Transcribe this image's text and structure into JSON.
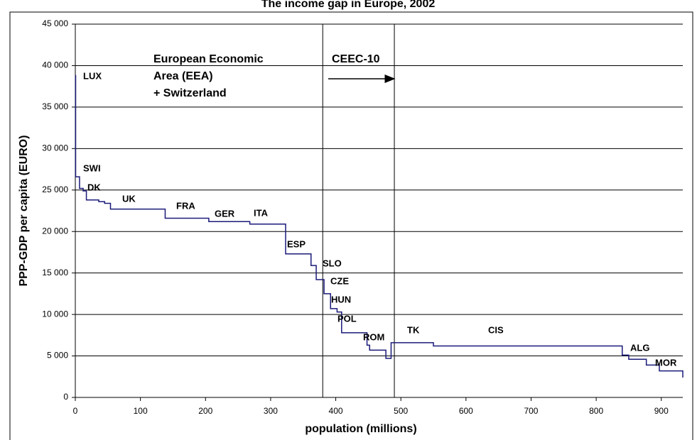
{
  "chart_data": {
    "type": "step-line",
    "title": "The income gap in Europe, 2002",
    "x_label": "population (millions)",
    "y_label": "PPP-GDP per capita (EURO)",
    "xlim": [
      0,
      933
    ],
    "xticks": [
      0,
      100,
      200,
      300,
      400,
      500,
      600,
      700,
      800,
      900
    ],
    "ylim": [
      0,
      45000
    ],
    "yticks": [
      0,
      {
        "value": 5000,
        "label": "5 000"
      },
      {
        "value": 10000,
        "label": "10 000"
      },
      {
        "value": 15000,
        "label": "15 000"
      },
      {
        "value": 20000,
        "label": "20 000"
      },
      {
        "value": 25000,
        "label": "25 000"
      },
      {
        "value": 30000,
        "label": "30 000"
      },
      {
        "value": 35000,
        "label": "35 000"
      },
      {
        "value": 40000,
        "label": "40 000"
      },
      {
        "value": 45000,
        "label": "45 000"
      }
    ],
    "grid": true,
    "color": "#1a1a7a",
    "x": [
      0,
      0.5,
      6.5,
      12,
      17,
      36,
      45,
      54,
      138,
      205,
      268,
      323,
      362,
      370,
      382,
      392,
      402,
      409,
      448,
      452,
      477,
      485,
      550,
      840,
      850,
      877,
      897,
      933
    ],
    "values": [
      38800,
      26600,
      25200,
      24900,
      23800,
      23600,
      23400,
      22700,
      21600,
      21200,
      20900,
      17300,
      15900,
      14200,
      12500,
      10700,
      10300,
      7800,
      6300,
      5700,
      4700,
      6600,
      6200,
      5100,
      4600,
      3900,
      3200,
      2400
    ],
    "vlines": [
      380,
      490
    ],
    "country_labels": [
      "LUX",
      "SWI",
      "DK",
      "UK",
      "FRA",
      "GER",
      "ITA",
      "ESP",
      "SLO",
      "CZE",
      "HUN",
      "POL",
      "ROM",
      "TK",
      "CIS",
      "ALG",
      "MOR"
    ],
    "region_labels": [
      [
        "European Economic",
        "Area (EEA)",
        "+ Switzerland"
      ],
      [
        "CEEC-10"
      ]
    ]
  }
}
